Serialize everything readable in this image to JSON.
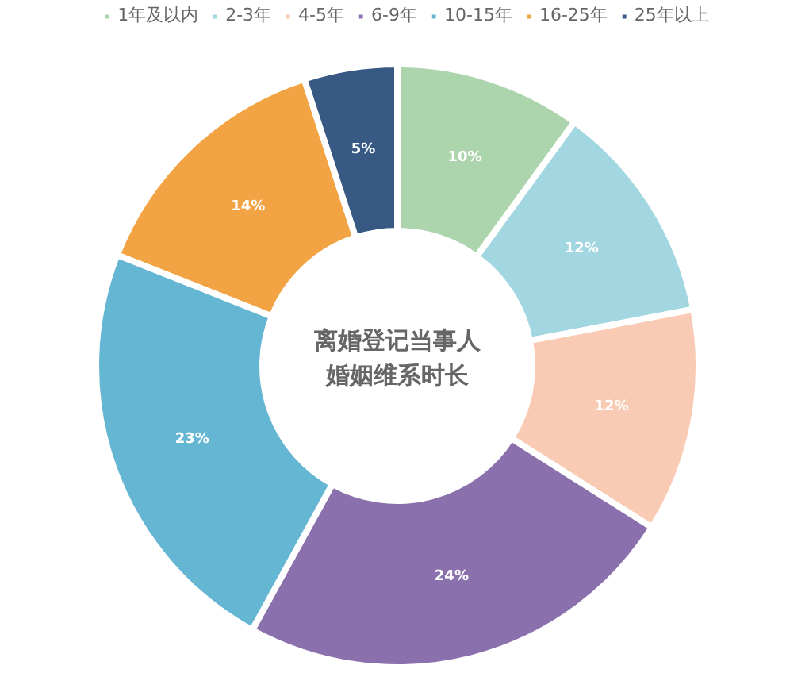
{
  "chart_data": {
    "type": "donut",
    "title": "离婚登记当事人婚姻维系时长",
    "categories": [
      "1年及以内",
      "2-3年",
      "4-5年",
      "6-9年",
      "10-15年",
      "16-25年",
      "25年以上"
    ],
    "values": [
      10,
      12,
      12,
      24,
      23,
      14,
      5
    ],
    "colors": [
      "#acd4ad",
      "#a2d7e2",
      "#f9cbb4",
      "#8b70ae",
      "#65b6d3",
      "#f2a445",
      "#375984"
    ],
    "value_labels": [
      "10%",
      "12%",
      "12%",
      "24%",
      "23%",
      "14%",
      "5%"
    ],
    "legend": "top"
  }
}
